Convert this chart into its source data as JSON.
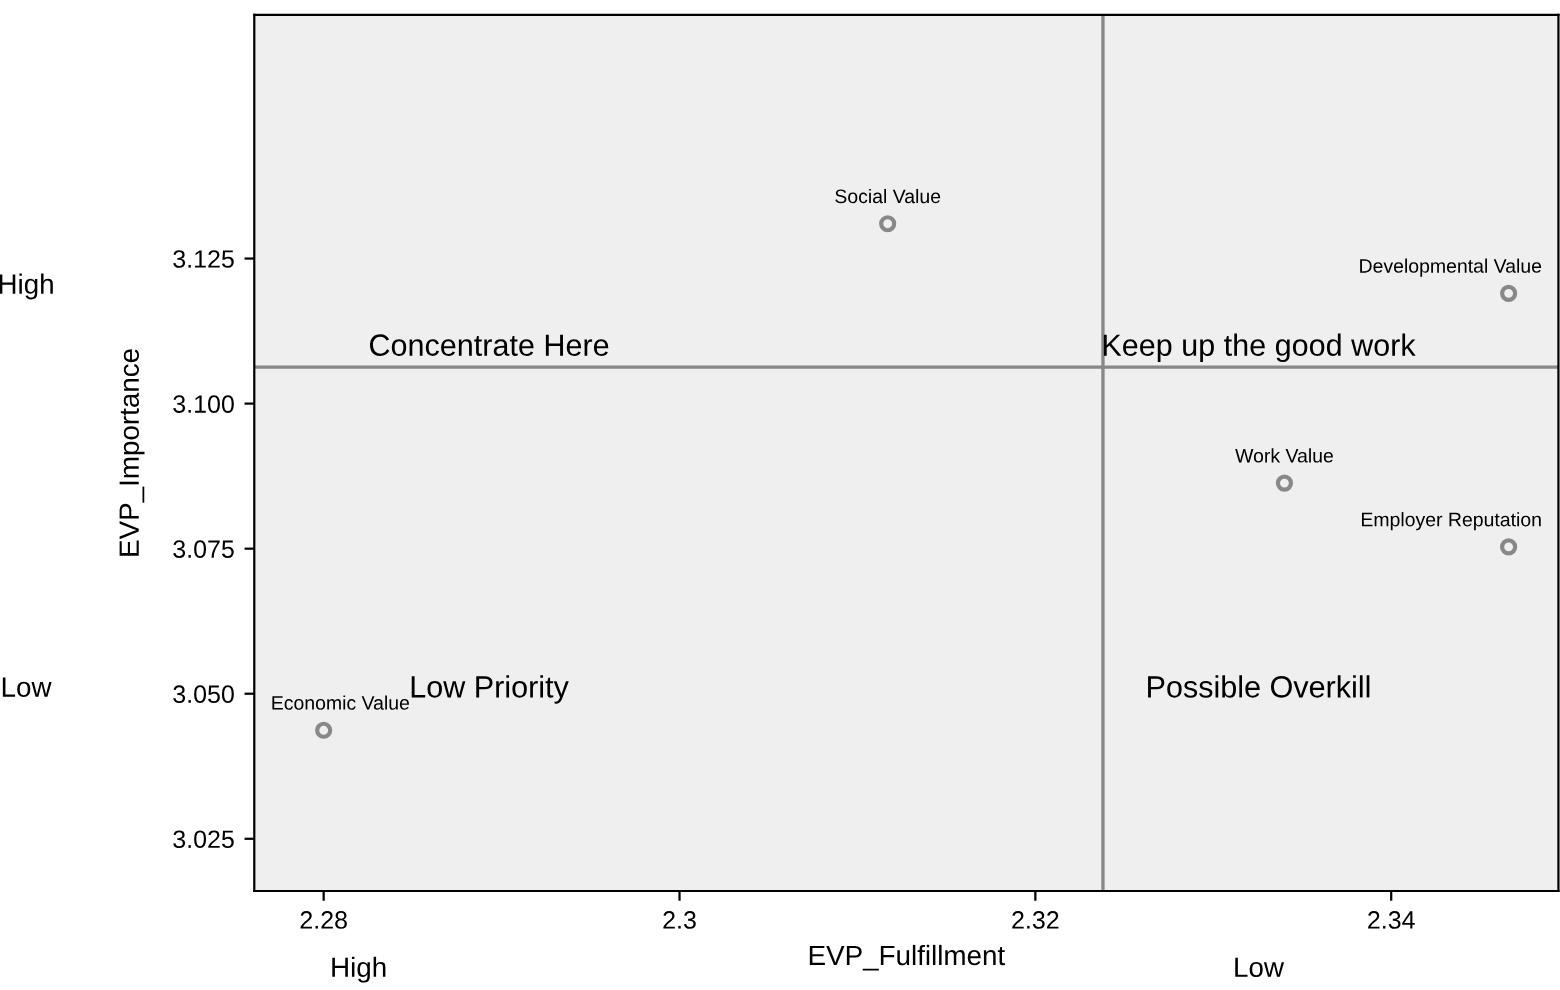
{
  "chart_data": {
    "type": "scatter",
    "xlabel": "EVP_Fulfillment",
    "ylabel": "EVP_Importance",
    "x": [
      2.3117,
      2.3466,
      2.334,
      2.3466,
      2.28
    ],
    "values": [
      3.131,
      3.119,
      3.0863,
      3.0753,
      3.0437
    ],
    "value_labels": [
      "Social Value",
      "Developmental Value",
      "Work Value",
      "Employer Reputation",
      "Economic Value"
    ],
    "color": "#888888",
    "marker": "circle",
    "xlim": [
      2.2761,
      2.3494
    ],
    "ylim": [
      3.016,
      3.167
    ],
    "xticks": [
      2.28,
      2.3,
      2.32,
      2.34
    ],
    "yticks": [
      {
        "value": 3.025,
        "label": "3.025"
      },
      {
        "value": 3.05,
        "label": "3.050"
      },
      {
        "value": 3.075,
        "label": "3.075"
      },
      {
        "value": 3.1,
        "label": "3.100"
      },
      {
        "value": 3.125,
        "label": "3.125"
      }
    ],
    "ref_lines": [
      {
        "axis": "x",
        "value": 2.3238,
        "color": "#888888"
      },
      {
        "axis": "y",
        "value": 3.1063,
        "color": "#888888"
      }
    ],
    "annotations": [
      "Concentrate Here",
      "Keep up the good work",
      "Low Priority",
      "Possible Overkill",
      "High",
      "Low",
      "High",
      "Low"
    ],
    "grid": false,
    "legend": false
  }
}
